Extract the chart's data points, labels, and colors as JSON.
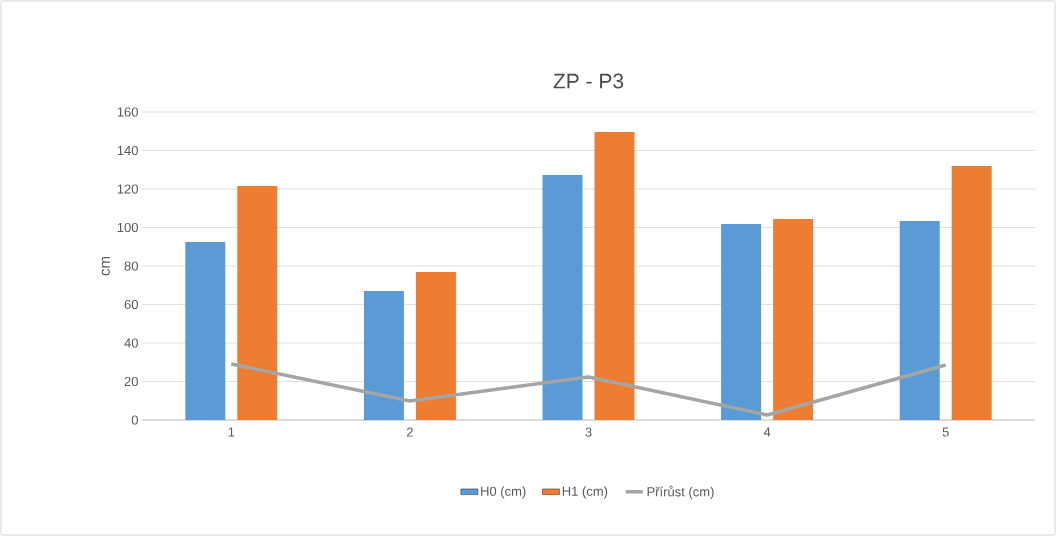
{
  "chart_data": {
    "type": "bar",
    "title": "ZP - P3",
    "ylabel": "cm",
    "categories": [
      "1",
      "2",
      "3",
      "4",
      "5"
    ],
    "series": [
      {
        "name": "H0 (cm)",
        "color": "#5b9bd5",
        "values": [
          92.5,
          67,
          127.3,
          101.8,
          103.4
        ]
      },
      {
        "name": "H1 (cm)",
        "color": "#ed7d31",
        "values": [
          121.6,
          76.9,
          149.6,
          104.4,
          132
        ]
      },
      {
        "name": "Přírůst (cm)",
        "type": "line",
        "color": "#a5a5a5",
        "values": [
          29.1,
          9.9,
          22.3,
          2.6,
          28.6
        ]
      }
    ],
    "ylim": [
      0,
      160
    ],
    "yticks": [
      0,
      20,
      40,
      60,
      80,
      100,
      120,
      140,
      160
    ],
    "grid": "y",
    "legend": "bottom"
  }
}
